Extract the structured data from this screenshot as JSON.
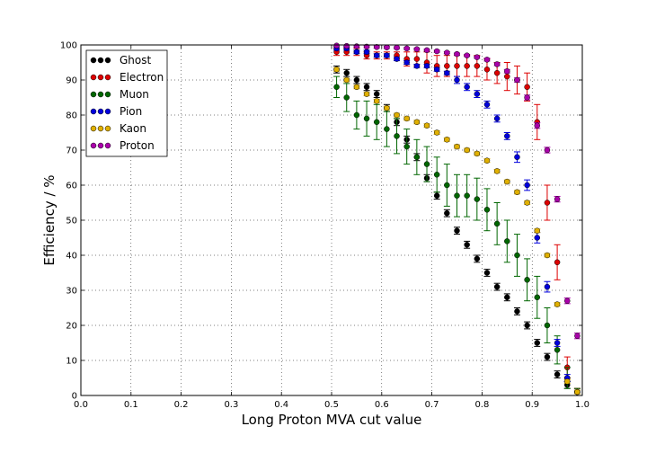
{
  "chart_data": {
    "type": "scatter",
    "title": "",
    "xlabel": "Long Proton MVA cut value",
    "ylabel": "Efficiency / %",
    "xlim": [
      0.0,
      1.0
    ],
    "ylim": [
      0,
      100
    ],
    "xticks": [
      "0.0",
      "0.1",
      "0.2",
      "0.3",
      "0.4",
      "0.5",
      "0.6",
      "0.7",
      "0.8",
      "0.9",
      "1.0"
    ],
    "yticks": [
      "0",
      "10",
      "20",
      "30",
      "40",
      "50",
      "60",
      "70",
      "80",
      "90",
      "100"
    ],
    "grid": true,
    "legend_position": "top-left",
    "series": [
      {
        "name": "Ghost",
        "color": "#000000",
        "x": [
          0.51,
          0.53,
          0.55,
          0.57,
          0.59,
          0.61,
          0.63,
          0.65,
          0.67,
          0.69,
          0.71,
          0.73,
          0.75,
          0.77,
          0.79,
          0.81,
          0.83,
          0.85,
          0.87,
          0.89,
          0.91,
          0.93,
          0.95,
          0.97,
          0.99
        ],
        "y": [
          93,
          92,
          90,
          88,
          86,
          82,
          78,
          73,
          68,
          62,
          57,
          52,
          47,
          43,
          39,
          35,
          31,
          28,
          24,
          20,
          15,
          11,
          6,
          3,
          1
        ],
        "err": [
          1,
          1,
          1,
          1,
          1,
          1,
          1,
          1,
          1,
          1,
          1,
          1,
          1,
          1,
          1,
          1,
          1,
          1,
          1,
          1,
          1,
          1,
          1,
          1,
          1
        ]
      },
      {
        "name": "Electron",
        "color": "#dd0000",
        "x": [
          0.51,
          0.53,
          0.55,
          0.57,
          0.59,
          0.61,
          0.63,
          0.65,
          0.67,
          0.69,
          0.71,
          0.73,
          0.75,
          0.77,
          0.79,
          0.81,
          0.83,
          0.85,
          0.87,
          0.89,
          0.91,
          0.93,
          0.95,
          0.97,
          0.99
        ],
        "y": [
          98,
          98,
          98,
          97,
          97,
          97,
          97,
          96,
          96,
          95,
          94,
          94,
          94,
          94,
          94,
          93,
          92,
          91,
          90,
          88,
          78,
          55,
          38,
          8,
          1
        ],
        "err": [
          1,
          1,
          1,
          1,
          1,
          1,
          1,
          2,
          2,
          3,
          3,
          3,
          3,
          3,
          3,
          3,
          3,
          4,
          4,
          4,
          5,
          5,
          5,
          3,
          1
        ]
      },
      {
        "name": "Muon",
        "color": "#006600",
        "x": [
          0.51,
          0.53,
          0.55,
          0.57,
          0.59,
          0.61,
          0.63,
          0.65,
          0.67,
          0.69,
          0.71,
          0.73,
          0.75,
          0.77,
          0.79,
          0.81,
          0.83,
          0.85,
          0.87,
          0.89,
          0.91,
          0.93,
          0.95,
          0.97,
          0.99
        ],
        "y": [
          88,
          85,
          80,
          79,
          78,
          76,
          74,
          71,
          68,
          66,
          63,
          60,
          57,
          57,
          56,
          53,
          49,
          44,
          40,
          33,
          28,
          20,
          13,
          5,
          1
        ],
        "err": [
          3,
          4,
          4,
          5,
          5,
          5,
          5,
          5,
          5,
          5,
          5,
          6,
          6,
          6,
          6,
          6,
          6,
          6,
          6,
          6,
          6,
          5,
          4,
          3,
          1
        ]
      },
      {
        "name": "Pion",
        "color": "#0000dd",
        "x": [
          0.51,
          0.53,
          0.55,
          0.57,
          0.59,
          0.61,
          0.63,
          0.65,
          0.67,
          0.69,
          0.71,
          0.73,
          0.75,
          0.77,
          0.79,
          0.81,
          0.83,
          0.85,
          0.87,
          0.89,
          0.91,
          0.93,
          0.95,
          0.97,
          0.99
        ],
        "y": [
          99,
          99,
          98,
          98,
          97,
          97,
          96,
          95,
          94,
          94,
          93,
          92,
          90,
          88,
          86,
          83,
          79,
          74,
          68,
          60,
          45,
          31,
          15,
          5,
          1
        ],
        "err": [
          0.5,
          0.5,
          0.5,
          0.5,
          0.5,
          0.5,
          0.5,
          0.5,
          0.5,
          0.5,
          0.5,
          0.5,
          1,
          1,
          1,
          1,
          1,
          1,
          1.5,
          1.5,
          1.5,
          1.5,
          1,
          1,
          0.5
        ]
      },
      {
        "name": "Kaon",
        "color": "#e0b000",
        "x": [
          0.51,
          0.53,
          0.55,
          0.57,
          0.59,
          0.61,
          0.63,
          0.65,
          0.67,
          0.69,
          0.71,
          0.73,
          0.75,
          0.77,
          0.79,
          0.81,
          0.83,
          0.85,
          0.87,
          0.89,
          0.91,
          0.93,
          0.95,
          0.97,
          0.99
        ],
        "y": [
          93,
          90,
          88,
          86,
          84,
          82,
          80,
          79,
          78,
          77,
          75,
          73,
          71,
          70,
          69,
          67,
          64,
          61,
          58,
          55,
          47,
          40,
          26,
          4,
          1
        ],
        "err": [
          0.5,
          0.5,
          0.5,
          0.5,
          0.5,
          0.5,
          0.5,
          0.5,
          0.5,
          0.5,
          0.5,
          0.5,
          0.5,
          0.5,
          0.5,
          0.5,
          0.5,
          0.5,
          0.5,
          0.5,
          0.5,
          0.5,
          0.5,
          0.5,
          0.5
        ]
      },
      {
        "name": "Proton",
        "color": "#aa00aa",
        "x": [
          0.51,
          0.53,
          0.55,
          0.57,
          0.59,
          0.61,
          0.63,
          0.65,
          0.67,
          0.69,
          0.71,
          0.73,
          0.75,
          0.77,
          0.79,
          0.81,
          0.83,
          0.85,
          0.87,
          0.89,
          0.91,
          0.93,
          0.95,
          0.97,
          0.99
        ],
        "y": [
          99.8,
          99.7,
          99.6,
          99.5,
          99.4,
          99.3,
          99.2,
          99.0,
          98.8,
          98.5,
          98.2,
          97.8,
          97.4,
          97.0,
          96.5,
          95.8,
          94.5,
          92.5,
          90.0,
          85.0,
          77.0,
          70.0,
          56.0,
          27.0,
          17.0
        ],
        "err": [
          0.3,
          0.3,
          0.3,
          0.3,
          0.3,
          0.3,
          0.3,
          0.3,
          0.3,
          0.3,
          0.3,
          0.3,
          0.3,
          0.3,
          0.3,
          0.4,
          0.4,
          0.5,
          0.6,
          0.7,
          0.8,
          0.8,
          0.8,
          0.8,
          0.8
        ]
      }
    ]
  }
}
